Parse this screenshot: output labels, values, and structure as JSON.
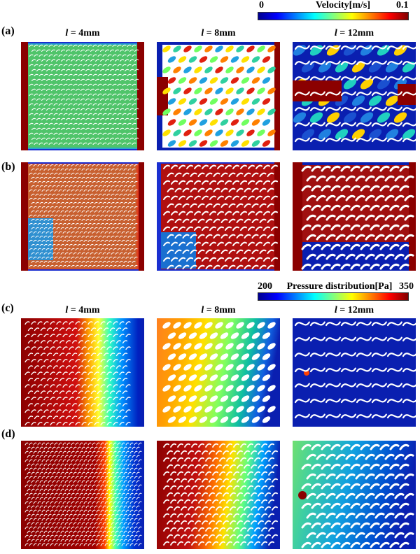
{
  "velocity_legend": {
    "title": "Velocity[m/s]",
    "min": "0",
    "max": "0.1"
  },
  "pressure_legend": {
    "title": "Pressure distribution[Pa]",
    "min": "200",
    "max": "350"
  },
  "rows": [
    {
      "label": "(a)"
    },
    {
      "label": "(b)"
    },
    {
      "label": "(c)"
    },
    {
      "label": "(d)"
    }
  ],
  "column_titles": [
    {
      "var": "l",
      "text": " = 4mm"
    },
    {
      "var": "l",
      "text": " = 8mm"
    },
    {
      "var": "l",
      "text": " = 12mm"
    }
  ],
  "colors": {
    "jet": [
      "#00008f",
      "#0000ff",
      "#0080ff",
      "#00ffff",
      "#80ff80",
      "#ffff00",
      "#ff8000",
      "#ff0000",
      "#800000"
    ],
    "dark_red": "#8b0000",
    "dark_blue": "#0a1fb0",
    "background": "#ffffff"
  }
}
